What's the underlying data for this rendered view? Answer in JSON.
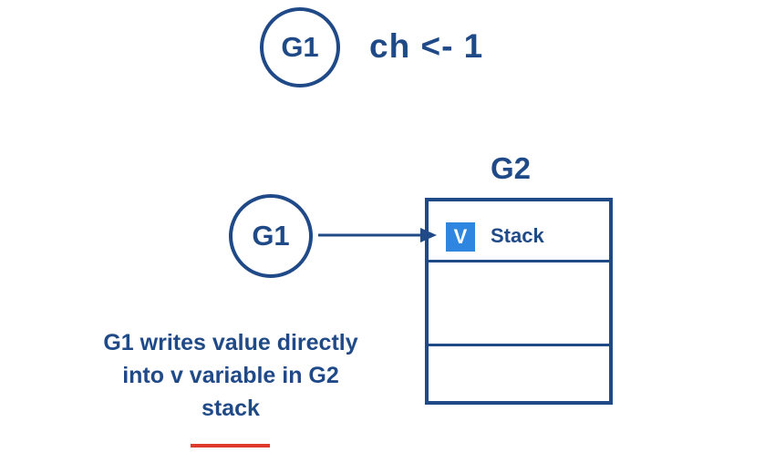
{
  "top": {
    "goroutine_label": "G1",
    "code": "ch <- 1"
  },
  "receiver": {
    "title": "G2",
    "stack_badge": "V",
    "stack_label": "Stack"
  },
  "sender": {
    "goroutine_label": "G1"
  },
  "caption": {
    "line1": "G1 writes value directly",
    "line2": "into v variable in G2",
    "line3": "stack"
  },
  "colors": {
    "primary": "#1f4a87",
    "badge": "#2f86e0",
    "accent_underline": "#e03a2f"
  }
}
